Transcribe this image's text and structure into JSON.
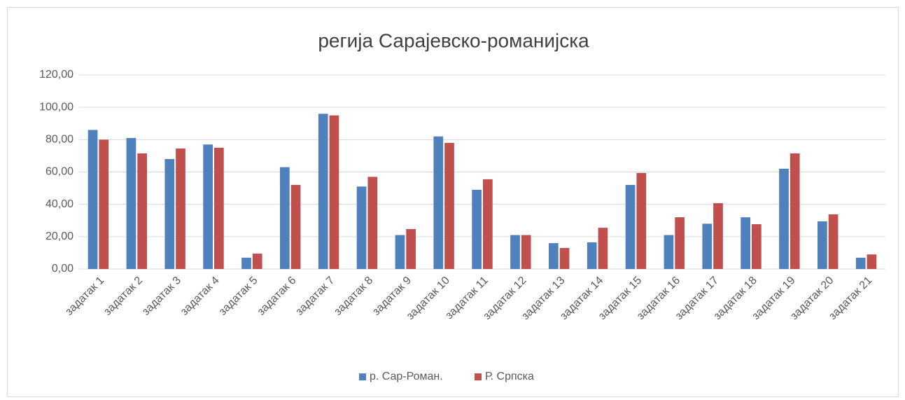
{
  "chart_data": {
    "type": "bar",
    "title": "регија Сарајевско-романијска",
    "categories": [
      "задатак 1",
      "задатак 2",
      "задатак 3",
      "задатак 4",
      "задатак 5",
      "задатак 6",
      "задатак 7",
      "задатак 8",
      "задатак 9",
      "задатак 10",
      "задатак 11",
      "задатак 12",
      "задатак 13",
      "задатак 14",
      "задатак 15",
      "задатак 16",
      "задатак 17",
      "задатак 18",
      "задатак 19",
      "задатак 20",
      "задатак 21"
    ],
    "series": [
      {
        "name": "р. Сар-Роман.",
        "color": "#4f81bd",
        "values": [
          86,
          81,
          68,
          77,
          7,
          63,
          96,
          51,
          21,
          82,
          49,
          21,
          16,
          16.5,
          52,
          21,
          28,
          32,
          62,
          29.5,
          7
        ]
      },
      {
        "name": "Р. Српска",
        "color": "#c0504d",
        "values": [
          80,
          71.5,
          74.5,
          75,
          9.5,
          52,
          95,
          57,
          24.7,
          78,
          55.5,
          21,
          13,
          25.5,
          59.4,
          32,
          40.7,
          27.7,
          71.5,
          33.8,
          9
        ]
      }
    ],
    "ylim": [
      0,
      120
    ],
    "yticks": [
      {
        "value": 0,
        "label": "0,00"
      },
      {
        "value": 20,
        "label": "20,00"
      },
      {
        "value": 40,
        "label": "40,00"
      },
      {
        "value": 60,
        "label": "60,00"
      },
      {
        "value": 80,
        "label": "80,00"
      },
      {
        "value": 100,
        "label": "100,00"
      },
      {
        "value": 120,
        "label": "120,00"
      }
    ],
    "grid": true,
    "legend": "bottom"
  }
}
